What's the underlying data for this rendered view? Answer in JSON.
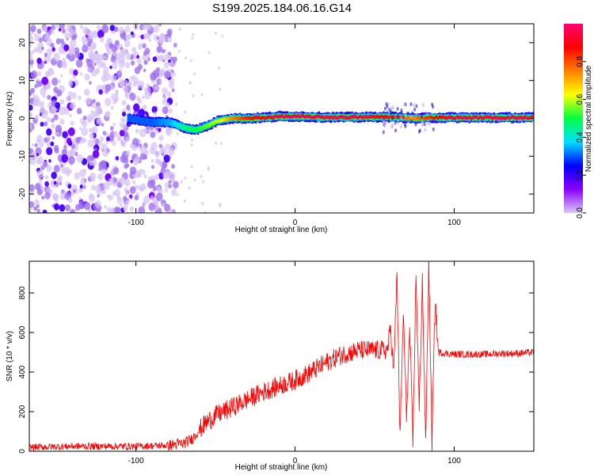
{
  "title": "S199.2025.184.06.16.G14",
  "chart_data": [
    {
      "type": "heatmap",
      "xlabel": "Height of straight line (km)",
      "ylabel": "Frequency (Hz)",
      "xlim": [
        -167,
        150
      ],
      "ylim": [
        -25,
        25
      ],
      "xticks": [
        -100,
        0,
        100
      ],
      "yticks": [
        -20,
        -10,
        0,
        10,
        20
      ],
      "colorbar": {
        "label": "Normalized spectral amplitude",
        "range": [
          0,
          1
        ],
        "ticks": [
          "0.0",
          "0.2",
          "0.4",
          "0.6",
          "0.8"
        ],
        "colors": [
          "#dcc8f5",
          "#8a00ff",
          "#0000ff",
          "#00e0ff",
          "#00ff40",
          "#ffff00",
          "#ff8000",
          "#ff0000",
          "#ff0070"
        ]
      },
      "ridge": {
        "x": [
          -105,
          -90,
          -78,
          -70,
          -62,
          -55,
          -48,
          -40,
          -30,
          -20,
          -10,
          0,
          20,
          40,
          55,
          65,
          75,
          85,
          100,
          120,
          150
        ],
        "y": [
          0,
          -1,
          -1,
          -2.5,
          -3,
          -2,
          -0.5,
          0,
          0,
          0.2,
          0.5,
          0.5,
          0.3,
          0.3,
          0.4,
          0.3,
          0,
          0.2,
          0.2,
          0.2,
          0.2
        ],
        "amplitude": [
          0.3,
          0.3,
          0.35,
          0.45,
          0.5,
          0.55,
          0.6,
          0.75,
          0.85,
          0.9,
          0.95,
          0.95,
          0.95,
          0.95,
          0.9,
          0.8,
          0.75,
          0.85,
          0.95,
          0.95,
          0.95
        ]
      }
    },
    {
      "type": "line",
      "xlabel": "Height of straight line (km)",
      "ylabel": "SNR (10 * v/v)",
      "xlim": [
        -167,
        150
      ],
      "ylim": [
        0,
        960
      ],
      "xticks": [
        -100,
        0,
        100
      ],
      "yticks": [
        0,
        200,
        400,
        600,
        800
      ],
      "series": [
        {
          "color": "#ff0000",
          "x": [
            -167,
            -140,
            -120,
            -100,
            -80,
            -70,
            -65,
            -60,
            -55,
            -50,
            -45,
            -40,
            -30,
            -20,
            -10,
            0,
            10,
            20,
            30,
            40,
            50,
            58,
            60,
            62,
            64,
            66,
            68,
            70,
            72,
            74,
            76,
            78,
            80,
            82,
            84,
            86,
            88,
            90,
            100,
            110,
            120,
            130,
            140,
            150
          ],
          "y": [
            20,
            25,
            25,
            25,
            30,
            40,
            60,
            110,
            150,
            180,
            200,
            220,
            260,
            300,
            330,
            360,
            400,
            450,
            490,
            510,
            510,
            510,
            620,
            400,
            900,
            60,
            700,
            180,
            620,
            40,
            900,
            200,
            870,
            20,
            960,
            30,
            780,
            500,
            490,
            490,
            490,
            495,
            495,
            500
          ],
          "noise": 18
        }
      ]
    }
  ]
}
